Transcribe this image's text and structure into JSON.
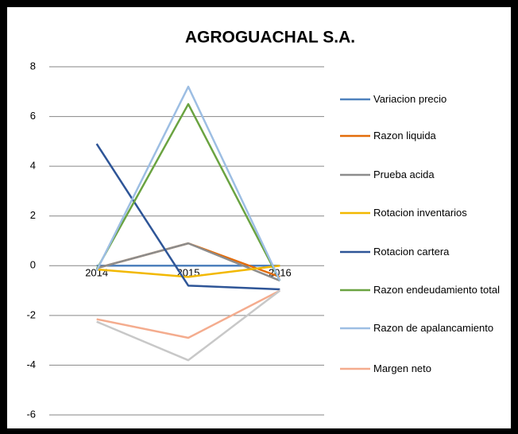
{
  "chart_data": {
    "type": "line",
    "title": "AGROGUACHAL S.A.",
    "categories": [
      "2014",
      "2015",
      "2016"
    ],
    "series": [
      {
        "name": "Variacion precio",
        "color": "#4F81BD",
        "values": [
          0,
          0,
          0
        ]
      },
      {
        "name": "Razon liquida",
        "color": "#E36C0A",
        "values": [
          -0.1,
          0.9,
          -0.45
        ]
      },
      {
        "name": "Prueba acida",
        "color": "#8C8C8C",
        "values": [
          -0.1,
          0.9,
          -0.6
        ]
      },
      {
        "name": "Rotacion inventarios",
        "color": "#F2B800",
        "values": [
          -0.15,
          -0.45,
          0
        ]
      },
      {
        "name": "Rotacion cartera",
        "color": "#2E5597",
        "values": [
          4.9,
          -0.8,
          -0.95
        ]
      },
      {
        "name": "Razon endeudamiento total",
        "color": "#6AA341",
        "values": [
          -0.15,
          6.5,
          -0.6
        ]
      },
      {
        "name": "Razon de apalancamiento",
        "color": "#9DBEE3",
        "values": [
          -0.2,
          7.2,
          -0.6
        ]
      },
      {
        "name": "Margen neto",
        "color": "#F4AC8E",
        "values": [
          -2.15,
          -2.9,
          -1.0
        ]
      },
      {
        "color": "#C8C8C8",
        "values": [
          -2.25,
          -3.8,
          -1.0
        ]
      }
    ],
    "ylim": [
      -6,
      8
    ],
    "yticks": [
      -6,
      -4,
      -2,
      0,
      2,
      4,
      6,
      8
    ],
    "grid": true
  }
}
